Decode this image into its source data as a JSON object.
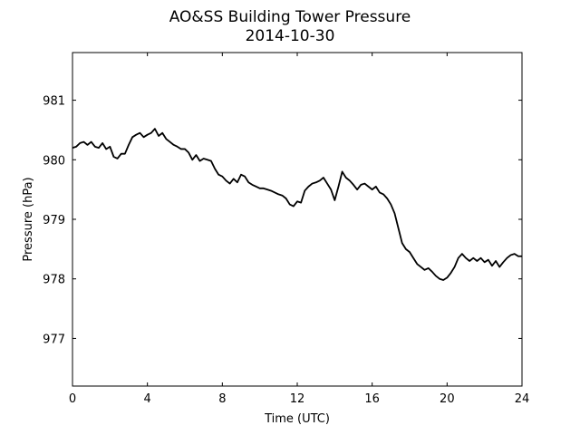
{
  "chart_data": {
    "type": "line",
    "title": "AO&SS Building Tower Pressure",
    "subtitle": "2014-10-30",
    "xlabel": "Time (UTC)",
    "ylabel": "Pressure (hPa)",
    "xlim": [
      0,
      24
    ],
    "ylim": [
      976.2,
      981.8
    ],
    "xticks": [
      0,
      4,
      8,
      12,
      16,
      20,
      24
    ],
    "yticks": [
      977,
      978,
      979,
      980,
      981
    ],
    "grid": false,
    "line_color": "#000000",
    "series": [
      {
        "x": [
          0.0,
          0.2,
          0.4,
          0.6,
          0.8,
          1.0,
          1.2,
          1.4,
          1.6,
          1.8,
          2.0,
          2.2,
          2.4,
          2.6,
          2.8,
          3.0,
          3.2,
          3.4,
          3.6,
          3.8,
          4.0,
          4.2,
          4.4,
          4.6,
          4.8,
          5.0,
          5.2,
          5.4,
          5.6,
          5.8,
          6.0,
          6.2,
          6.4,
          6.6,
          6.8,
          7.0,
          7.2,
          7.4,
          7.6,
          7.8,
          8.0,
          8.2,
          8.4,
          8.6,
          8.8,
          9.0,
          9.2,
          9.4,
          9.6,
          9.8,
          10.0,
          10.2,
          10.4,
          10.6,
          10.8,
          11.0,
          11.2,
          11.4,
          11.6,
          11.8,
          12.0,
          12.2,
          12.4,
          12.6,
          12.8,
          13.0,
          13.2,
          13.4,
          13.6,
          13.8,
          14.0,
          14.2,
          14.4,
          14.6,
          14.8,
          15.0,
          15.2,
          15.4,
          15.6,
          15.8,
          16.0,
          16.2,
          16.4,
          16.6,
          16.8,
          17.0,
          17.2,
          17.4,
          17.6,
          17.8,
          18.0,
          18.2,
          18.4,
          18.6,
          18.8,
          19.0,
          19.2,
          19.4,
          19.6,
          19.8,
          20.0,
          20.2,
          20.4,
          20.6,
          20.8,
          21.0,
          21.2,
          21.4,
          21.6,
          21.8,
          22.0,
          22.2,
          22.4,
          22.6,
          22.8,
          23.0,
          23.2,
          23.4,
          23.6,
          23.8,
          24.0
        ],
        "y": [
          980.2,
          980.22,
          980.28,
          980.3,
          980.25,
          980.3,
          980.22,
          980.2,
          980.28,
          980.18,
          980.22,
          980.05,
          980.02,
          980.1,
          980.1,
          980.25,
          980.38,
          980.42,
          980.45,
          980.38,
          980.42,
          980.45,
          980.52,
          980.4,
          980.45,
          980.35,
          980.3,
          980.25,
          980.22,
          980.18,
          980.18,
          980.12,
          980.0,
          980.08,
          979.98,
          980.02,
          980.0,
          979.98,
          979.85,
          979.75,
          979.72,
          979.65,
          979.6,
          979.68,
          979.62,
          979.75,
          979.72,
          979.62,
          979.58,
          979.55,
          979.52,
          979.52,
          979.5,
          979.48,
          979.45,
          979.42,
          979.4,
          979.35,
          979.25,
          979.22,
          979.3,
          979.28,
          979.48,
          979.55,
          979.6,
          979.62,
          979.65,
          979.7,
          979.6,
          979.5,
          979.32,
          979.55,
          979.8,
          979.7,
          979.65,
          979.58,
          979.5,
          979.58,
          979.6,
          979.55,
          979.5,
          979.55,
          979.45,
          979.42,
          979.35,
          979.25,
          979.1,
          978.85,
          978.6,
          978.5,
          978.45,
          978.35,
          978.25,
          978.2,
          978.15,
          978.18,
          978.12,
          978.05,
          978.0,
          977.98,
          978.02,
          978.1,
          978.2,
          978.35,
          978.42,
          978.35,
          978.3,
          978.35,
          978.3,
          978.35,
          978.28,
          978.32,
          978.22,
          978.3,
          978.2,
          978.28,
          978.35,
          978.4,
          978.42,
          978.38,
          978.38
        ]
      }
    ]
  }
}
